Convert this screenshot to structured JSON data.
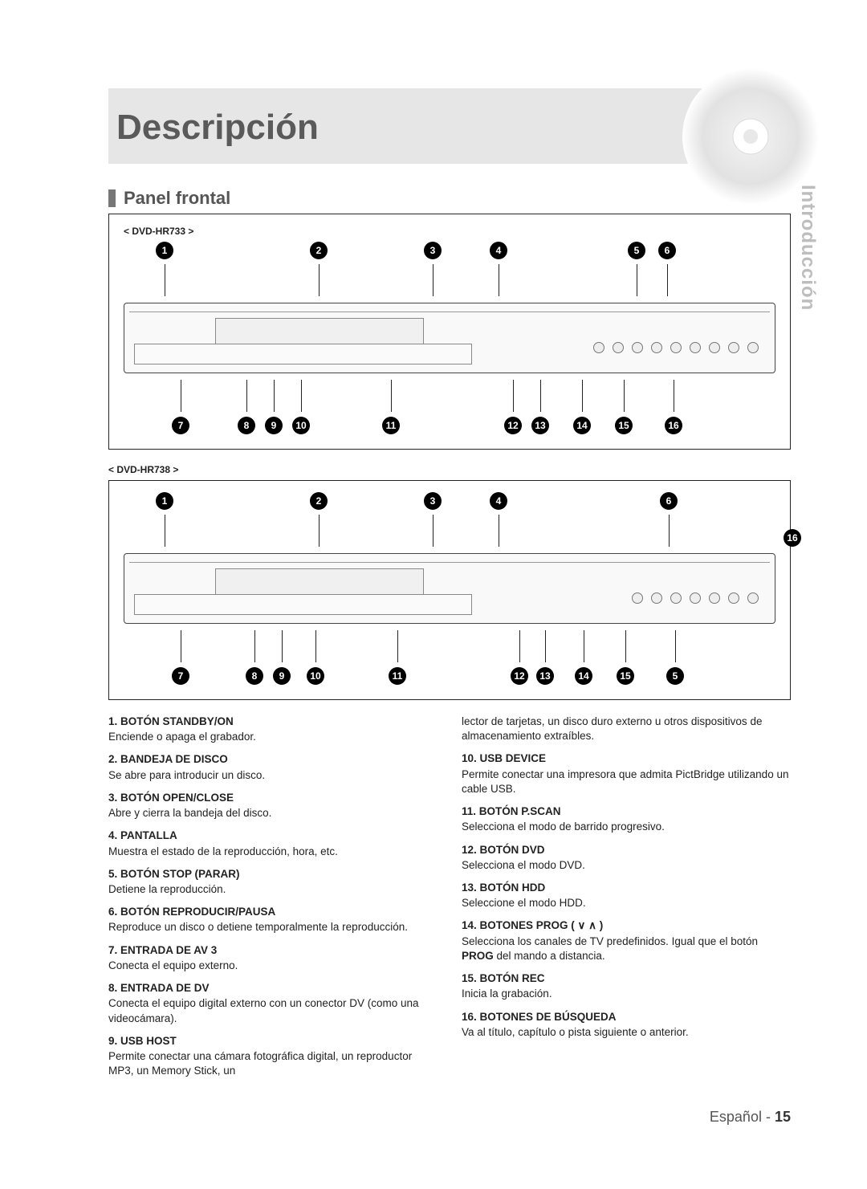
{
  "header": {
    "title": "Descripción",
    "side_tab": "Introducción"
  },
  "section": {
    "heading": "Panel frontal"
  },
  "diagrams": {
    "model_a": "< DVD-HR733 >",
    "model_b": "< DVD-HR738 >",
    "callouts_a_top": [
      "1",
      "2",
      "3",
      "4",
      "5",
      "6"
    ],
    "callouts_a_bottom": [
      "7",
      "8",
      "9",
      "10",
      "11",
      "12",
      "13",
      "14",
      "15",
      "16"
    ],
    "callouts_b_top": [
      "1",
      "2",
      "3",
      "4",
      "6"
    ],
    "callouts_b_bottom": [
      "7",
      "8",
      "9",
      "10",
      "11",
      "12",
      "13",
      "14",
      "15",
      "5"
    ],
    "callout_side_b": "16"
  },
  "descriptions_left": [
    {
      "n": "1",
      "title": "BOTÓN STANDBY/ON",
      "body": "Enciende o apaga el grabador."
    },
    {
      "n": "2",
      "title": "BANDEJA DE DISCO",
      "body": "Se abre para introducir un disco."
    },
    {
      "n": "3",
      "title": "BOTÓN OPEN/CLOSE",
      "body": "Abre y cierra la bandeja del disco."
    },
    {
      "n": "4",
      "title": "PANTALLA",
      "body": "Muestra el estado de la reproducción, hora, etc."
    },
    {
      "n": "5",
      "title": "BOTÓN STOP (PARAR)",
      "body": "Detiene la reproducción."
    },
    {
      "n": "6",
      "title": "BOTÓN REPRODUCIR/PAUSA",
      "body": "Reproduce un disco o detiene temporalmente la reproducción."
    },
    {
      "n": "7",
      "title": "ENTRADA DE AV 3",
      "body": "Conecta el equipo externo."
    },
    {
      "n": "8",
      "title": "ENTRADA DE DV",
      "body": "Conecta el equipo digital externo con un conector DV (como una videocámara)."
    },
    {
      "n": "9",
      "title": "USB HOST",
      "body": "Permite conectar una cámara fotográfica digital, un reproductor MP3, un Memory Stick, un"
    }
  ],
  "descriptions_right_intro": "lector de tarjetas, un disco duro externo u otros dispositivos de almacenamiento extraíbles.",
  "descriptions_right": [
    {
      "n": "10",
      "title": "USB DEVICE",
      "body": "Permite conectar una impresora que admita PictBridge utilizando un cable USB."
    },
    {
      "n": "11",
      "title": "BOTÓN P.SCAN",
      "body": "Selecciona el modo de barrido progresivo."
    },
    {
      "n": "12",
      "title": "BOTÓN DVD",
      "body": "Selecciona el modo DVD."
    },
    {
      "n": "13",
      "title": "BOTÓN HDD",
      "body": "Seleccione el modo HDD."
    },
    {
      "n": "14",
      "title": "BOTONES PROG ( ∨  ∧ )",
      "body_pre": "Selecciona los canales de TV predefinidos. Igual que el botón ",
      "body_bold": "PROG",
      "body_post": " del mando a distancia."
    },
    {
      "n": "15",
      "title": "BOTÓN REC",
      "body": "Inicia la grabación."
    },
    {
      "n": "16",
      "title": "BOTONES DE BÚSQUEDA",
      "body": "Va al título, capítulo o pista siguiente o anterior."
    }
  ],
  "footer": {
    "language": "Español",
    "sep": " - ",
    "page": "15"
  },
  "style": {
    "title_color": "#5a5a5a",
    "header_bg": "#e6e6e6",
    "side_tab_color": "#bdbdbd"
  }
}
